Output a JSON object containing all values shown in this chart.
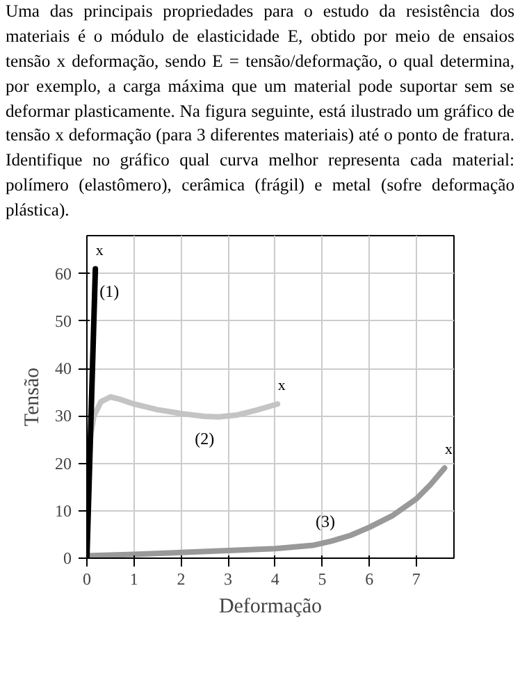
{
  "chart_data": {
    "type": "line",
    "title": "Uma das principais propriedades para o estudo da resistência dos materiais é o módulo de elasticidade E, obtido por meio de ensaios tensão x deformação, sendo E = tensão/deformação, o qual determina, por exemplo, a carga máxima que um material pode suportar sem se deformar plasticamente. Na figura seguinte, está ilustrado um gráfico de tensão x deformação (para 3 diferentes materiais) até o ponto de fratura. Identifique no gráfico qual curva melhor representa cada material: polímero (elastômero), cerâmica (frágil) e metal (sofre deformação plástica).",
    "xlabel": "Deformação",
    "ylabel": "Tensão",
    "xlim": [
      0,
      7.8
    ],
    "ylim": [
      0,
      68
    ],
    "xticks": [
      0,
      1,
      2,
      3,
      4,
      5,
      6,
      7
    ],
    "yticks": [
      0,
      10,
      20,
      30,
      40,
      50,
      60
    ],
    "grid": true,
    "line_style": "solid",
    "marker": "none",
    "series": [
      {
        "name": "(2)",
        "color": "#c4c4c4",
        "x": [
          0.03,
          0.08,
          0.15,
          0.3,
          0.5,
          0.7,
          1.0,
          1.5,
          2.0,
          2.5,
          2.8,
          3.2,
          3.6,
          4.05
        ],
        "values": [
          17,
          26,
          30,
          33,
          34,
          33.5,
          32.5,
          31.3,
          30.5,
          29.9,
          29.8,
          30.2,
          31.2,
          32.5
        ]
      },
      {
        "name": "(3)",
        "color": "#999999",
        "x": [
          0,
          1,
          2,
          3,
          4,
          4.8,
          5.2,
          5.6,
          6.0,
          6.5,
          7.0,
          7.3,
          7.6
        ],
        "values": [
          0.5,
          0.8,
          1.2,
          1.6,
          2.0,
          2.7,
          3.6,
          4.8,
          6.5,
          9.0,
          12.5,
          15.5,
          19
        ]
      },
      {
        "name": "(1)",
        "color": "#000000",
        "x": [
          0,
          0.18
        ],
        "values": [
          0,
          61
        ]
      }
    ],
    "annotations": [
      {
        "text": "x",
        "x": 0.18,
        "y": 61
      },
      {
        "text": "x",
        "x": 4.05,
        "y": 32.5
      },
      {
        "text": "x",
        "x": 7.6,
        "y": 19
      }
    ]
  }
}
